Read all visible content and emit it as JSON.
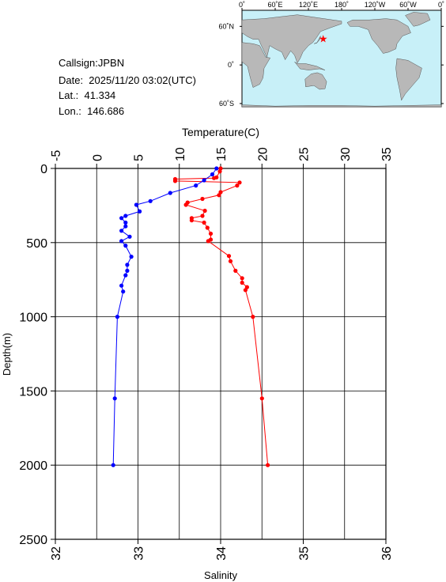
{
  "station": {
    "callsign": "Callsign:JPBN",
    "date": "Date:  2025/11/20 03:02(UTC)",
    "lat": "Lat.:  41.334",
    "lon": "Lon.:  146.686"
  },
  "map": {
    "top_labels": [
      "0˚",
      "60˚E",
      "120˚E",
      "180˚",
      "120˚W",
      "60˚W",
      "0˚"
    ],
    "lat_labels": [
      "60˚N",
      "0˚",
      "60˚S"
    ],
    "marker_lon": 146.686,
    "marker_lat": 41.334,
    "marker_color": "#ff0000",
    "ocean_color": "#c8f0f8",
    "land_color": "#b8b8b8"
  },
  "chart_data": {
    "type": "line",
    "ylabel": "Depth(m)",
    "ylim": [
      0,
      2500
    ],
    "yticks": [
      "0",
      "500",
      "1000",
      "1500",
      "2000",
      "2500"
    ],
    "y_reversed": true,
    "grid": true,
    "temperature_axis": {
      "label": "Temperature(C)",
      "lim": [
        -5,
        35
      ],
      "ticks": [
        "-5",
        "0",
        "5",
        "10",
        "15",
        "20",
        "25",
        "30",
        "35"
      ]
    },
    "salinity_axis": {
      "label": "Salinity",
      "lim": [
        32,
        36
      ],
      "ticks": [
        "32",
        "33",
        "34",
        "35",
        "36"
      ]
    },
    "series": [
      {
        "axis": "temperature",
        "color": "#ff0000",
        "points": [
          [
            15.0,
            0
          ],
          [
            14.9,
            20
          ],
          [
            14.5,
            60
          ],
          [
            14.2,
            65
          ],
          [
            9.5,
            72
          ],
          [
            9.5,
            85
          ],
          [
            17.3,
            95
          ],
          [
            17.0,
            115
          ],
          [
            15.0,
            160
          ],
          [
            14.8,
            180
          ],
          [
            12.8,
            205
          ],
          [
            11.0,
            230
          ],
          [
            10.8,
            245
          ],
          [
            13.1,
            285
          ],
          [
            12.8,
            320
          ],
          [
            11.5,
            335
          ],
          [
            11.5,
            350
          ],
          [
            13.0,
            365
          ],
          [
            13.4,
            400
          ],
          [
            13.8,
            440
          ],
          [
            13.8,
            480
          ],
          [
            13.5,
            490
          ],
          [
            16.0,
            590
          ],
          [
            16.2,
            625
          ],
          [
            16.8,
            690
          ],
          [
            17.6,
            740
          ],
          [
            17.6,
            770
          ],
          [
            18.2,
            800
          ],
          [
            18.0,
            820
          ],
          [
            18.9,
            1000
          ],
          [
            20.0,
            1550
          ],
          [
            20.7,
            2000
          ]
        ]
      },
      {
        "axis": "salinity",
        "color": "#0000ff",
        "points": [
          [
            33.95,
            0
          ],
          [
            33.9,
            40
          ],
          [
            33.8,
            80
          ],
          [
            33.7,
            115
          ],
          [
            33.39,
            165
          ],
          [
            33.15,
            220
          ],
          [
            32.98,
            245
          ],
          [
            33.02,
            290
          ],
          [
            32.85,
            320
          ],
          [
            32.8,
            335
          ],
          [
            32.85,
            365
          ],
          [
            32.85,
            390
          ],
          [
            32.8,
            420
          ],
          [
            32.9,
            460
          ],
          [
            32.8,
            490
          ],
          [
            32.85,
            520
          ],
          [
            32.92,
            595
          ],
          [
            32.87,
            650
          ],
          [
            32.87,
            690
          ],
          [
            32.85,
            720
          ],
          [
            32.8,
            790
          ],
          [
            32.82,
            830
          ],
          [
            32.75,
            1000
          ],
          [
            32.72,
            1550
          ],
          [
            32.7,
            2000
          ]
        ]
      }
    ]
  }
}
